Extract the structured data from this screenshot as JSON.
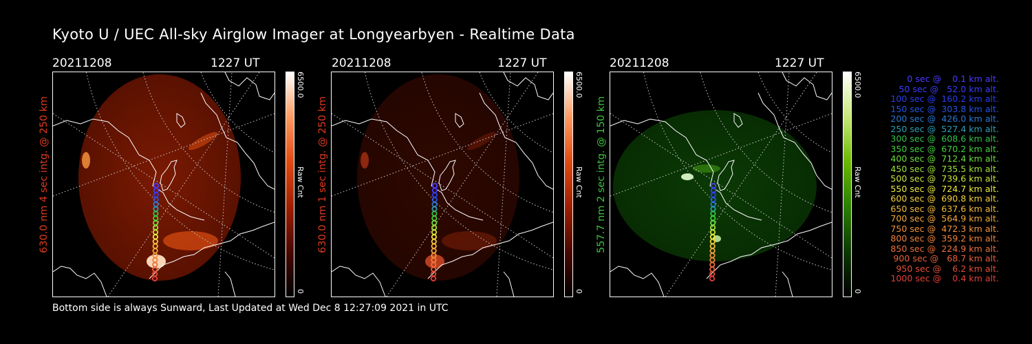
{
  "page": {
    "title": "Kyoto U / UEC All-sky Airglow Imager at Longyearbyen - Realtime Data",
    "footer": "Bottom side is always Sunward, Last Updated at Wed Dec  8 12:27:09 2021 in UTC"
  },
  "panels": [
    {
      "date": "20211208",
      "time": "1227 UT",
      "ylabel": "630.0 nm 4 sec intg. @ 250 km",
      "ylabel_color": "#e03a1e",
      "cbar_max": "6500.0",
      "cbar_label": "Raw Cnt",
      "cbar_min": "0",
      "colormap": "red"
    },
    {
      "date": "20211208",
      "time": "1227 UT",
      "ylabel": "630.0 nm 1 sec intg. @ 250 km",
      "ylabel_color": "#e03a1e",
      "cbar_max": "6500.0",
      "cbar_label": "Raw Cnt",
      "cbar_min": "0",
      "colormap": "red"
    },
    {
      "date": "20211208",
      "time": "1227 UT",
      "ylabel": "557.7 nm 2 sec intg. @ 150 km",
      "ylabel_color": "#3fc23f",
      "cbar_max": "6500.0",
      "cbar_label": "Raw Cnt",
      "cbar_min": "0",
      "colormap": "green"
    }
  ],
  "legend": [
    {
      "text": "   0 sec @    0.1 km alt.",
      "color": "#4b3cff"
    },
    {
      "text": "  50 sec @   52.0 km alt.",
      "color": "#3a3cff"
    },
    {
      "text": " 100 sec @  160.2 km alt.",
      "color": "#2b3df2"
    },
    {
      "text": " 150 sec @  303.8 km alt.",
      "color": "#2554e6"
    },
    {
      "text": " 200 sec @  426.0 km alt.",
      "color": "#2a79d6"
    },
    {
      "text": " 250 sec @  527.4 km alt.",
      "color": "#2aa0b4"
    },
    {
      "text": " 300 sec @  608.6 km alt.",
      "color": "#34c24a"
    },
    {
      "text": " 350 sec @  670.2 km alt.",
      "color": "#3fd23c"
    },
    {
      "text": " 400 sec @  712.4 km alt.",
      "color": "#6bde3a"
    },
    {
      "text": " 450 sec @  735.5 km alt.",
      "color": "#9ee23a"
    },
    {
      "text": " 500 sec @  739.6 km alt.",
      "color": "#c8e63a"
    },
    {
      "text": " 550 sec @  724.7 km alt.",
      "color": "#ecec3a"
    },
    {
      "text": " 600 sec @  690.8 km alt.",
      "color": "#f4d23a"
    },
    {
      "text": " 650 sec @  637.6 km alt.",
      "color": "#f4bc3a"
    },
    {
      "text": " 700 sec @  564.9 km alt.",
      "color": "#f4a83a"
    },
    {
      "text": " 750 sec @  472.3 km alt.",
      "color": "#f4943a"
    },
    {
      "text": " 800 sec @  359.2 km alt.",
      "color": "#f0823a"
    },
    {
      "text": " 850 sec @  224.9 km alt.",
      "color": "#ec703a"
    },
    {
      "text": " 900 sec @   68.7 km alt.",
      "color": "#e8603a"
    },
    {
      "text": " 950 sec @    6.2 km alt.",
      "color": "#e4503a"
    },
    {
      "text": "1000 sec @    0.4 km alt.",
      "color": "#e0403a"
    }
  ]
}
